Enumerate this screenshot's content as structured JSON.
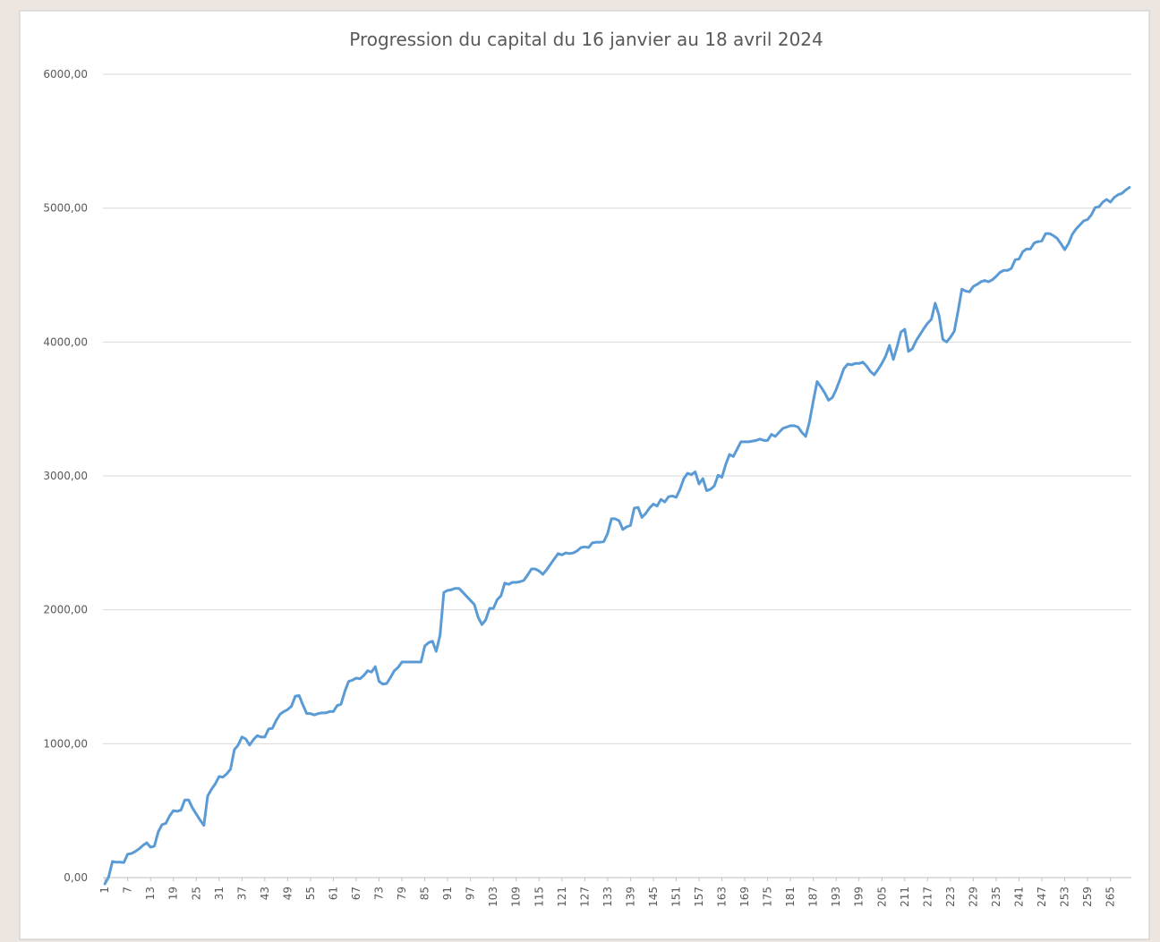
{
  "chart_data": {
    "type": "line",
    "title": "Progression du capital du 16 janvier au 18 avril 2024",
    "x": [
      1,
      2,
      3,
      4,
      5,
      6,
      7,
      8,
      9,
      10,
      11,
      12,
      13,
      14,
      15,
      16,
      17,
      18,
      19,
      20,
      21,
      22,
      23,
      24,
      25,
      26,
      27,
      28,
      29,
      30,
      31,
      32,
      33,
      34,
      35,
      36,
      37,
      38,
      39,
      40,
      41,
      42,
      43,
      44,
      45,
      46,
      47,
      48,
      49,
      50,
      51,
      52,
      53,
      54,
      55,
      56,
      57,
      58,
      59,
      60,
      61,
      62,
      63,
      64,
      65,
      66,
      67,
      68,
      69,
      70,
      71,
      72,
      73,
      74,
      75,
      76,
      77,
      78,
      79,
      80,
      81,
      82,
      83,
      84,
      85,
      86,
      87,
      88,
      89,
      90,
      91,
      92,
      93,
      94,
      95,
      96,
      97,
      98,
      99,
      100,
      101,
      102,
      103,
      104,
      105,
      106,
      107,
      108,
      109,
      110,
      111,
      112,
      113,
      114,
      115,
      116,
      117,
      118,
      119,
      120,
      121,
      122,
      123,
      124,
      125,
      126,
      127,
      128,
      129,
      130,
      131,
      132,
      133,
      134,
      135,
      136,
      137,
      138,
      139,
      140,
      141,
      142,
      143,
      144,
      145,
      146,
      147,
      148,
      149,
      150,
      151,
      152,
      153,
      154,
      155,
      156,
      157,
      158,
      159,
      160,
      161,
      162,
      163,
      164,
      165,
      166,
      167,
      168,
      169,
      170,
      171,
      172,
      173,
      174,
      175,
      176,
      177,
      178,
      179,
      180,
      181,
      182,
      183,
      184,
      185,
      186,
      187,
      188,
      189,
      190,
      191,
      192,
      193,
      194,
      195,
      196,
      197,
      198,
      199,
      200,
      201,
      202,
      203,
      204,
      205,
      206,
      207,
      208,
      209,
      210,
      211,
      212,
      213,
      214,
      215,
      216,
      217,
      218,
      219,
      220,
      221,
      222,
      223,
      224,
      225,
      226,
      227,
      228,
      229,
      230,
      231,
      232,
      233,
      234,
      235,
      236,
      237,
      238,
      239,
      240,
      241,
      242,
      243,
      244,
      245,
      246,
      247,
      248,
      249,
      250,
      251,
      252,
      253,
      254,
      255,
      256,
      257,
      258,
      259,
      260,
      261,
      262,
      263,
      264,
      265,
      266,
      267,
      268,
      269,
      270
    ],
    "series": [
      {
        "name": "Capital",
        "color": "#5b9bd5",
        "values": [
          -47,
          5,
          120,
          115,
          115,
          113,
          175,
          180,
          195,
          215,
          240,
          260,
          227,
          235,
          340,
          395,
          405,
          460,
          500,
          495,
          505,
          580,
          580,
          520,
          475,
          430,
          390,
          610,
          660,
          700,
          755,
          750,
          775,
          810,
          955,
          990,
          1050,
          1035,
          990,
          1030,
          1060,
          1050,
          1050,
          1110,
          1115,
          1175,
          1220,
          1240,
          1255,
          1280,
          1355,
          1360,
          1290,
          1225,
          1225,
          1215,
          1225,
          1230,
          1230,
          1240,
          1240,
          1285,
          1295,
          1390,
          1465,
          1475,
          1490,
          1485,
          1510,
          1545,
          1535,
          1575,
          1465,
          1445,
          1450,
          1495,
          1545,
          1570,
          1610,
          1610,
          1610,
          1610,
          1610,
          1610,
          1730,
          1755,
          1765,
          1690,
          1810,
          2130,
          2145,
          2150,
          2160,
          2160,
          2130,
          2100,
          2070,
          2040,
          1945,
          1890,
          1925,
          2010,
          2010,
          2075,
          2105,
          2200,
          2190,
          2205,
          2205,
          2210,
          2220,
          2260,
          2305,
          2305,
          2290,
          2265,
          2300,
          2340,
          2380,
          2420,
          2410,
          2425,
          2420,
          2425,
          2440,
          2465,
          2470,
          2465,
          2500,
          2505,
          2505,
          2510,
          2570,
          2680,
          2680,
          2665,
          2600,
          2620,
          2630,
          2760,
          2765,
          2690,
          2720,
          2760,
          2790,
          2775,
          2825,
          2805,
          2845,
          2850,
          2840,
          2900,
          2980,
          3020,
          3010,
          3030,
          2940,
          2980,
          2890,
          2900,
          2925,
          3005,
          2990,
          3085,
          3160,
          3145,
          3200,
          3255,
          3255,
          3255,
          3260,
          3265,
          3275,
          3265,
          3265,
          3310,
          3295,
          3325,
          3355,
          3365,
          3375,
          3375,
          3365,
          3325,
          3295,
          3405,
          3560,
          3705,
          3665,
          3620,
          3565,
          3585,
          3645,
          3720,
          3800,
          3835,
          3830,
          3840,
          3840,
          3850,
          3820,
          3780,
          3755,
          3795,
          3840,
          3895,
          3975,
          3870,
          3965,
          4075,
          4095,
          3930,
          3950,
          4010,
          4055,
          4100,
          4140,
          4170,
          4290,
          4200,
          4020,
          4000,
          4035,
          4080,
          4230,
          4395,
          4380,
          4375,
          4415,
          4430,
          4450,
          4460,
          4450,
          4465,
          4490,
          4520,
          4535,
          4535,
          4550,
          4615,
          4620,
          4675,
          4695,
          4695,
          4740,
          4750,
          4755,
          4810,
          4810,
          4795,
          4775,
          4735,
          4690,
          4735,
          4805,
          4845,
          4875,
          4905,
          4915,
          4950,
          5005,
          5010,
          5045,
          5065,
          5045,
          5080,
          5100,
          5110,
          5135,
          5155
        ]
      }
    ],
    "xlim": [
      0.5,
      270.5
    ],
    "xticks": [
      1,
      7,
      13,
      19,
      25,
      31,
      37,
      43,
      49,
      55,
      61,
      67,
      73,
      79,
      85,
      91,
      97,
      103,
      109,
      115,
      121,
      127,
      133,
      139,
      145,
      151,
      157,
      163,
      169,
      175,
      181,
      187,
      193,
      199,
      205,
      211,
      217,
      223,
      229,
      235,
      241,
      247,
      253,
      259,
      265
    ],
    "ylim": [
      0,
      6000
    ],
    "yticks": [
      {
        "value": 0,
        "label": "0,00"
      },
      {
        "value": 1000,
        "label": "1000,00"
      },
      {
        "value": 2000,
        "label": "2000,00"
      },
      {
        "value": 3000,
        "label": "3000,00"
      },
      {
        "value": 4000,
        "label": "4000,00"
      },
      {
        "value": 5000,
        "label": "5000,00"
      },
      {
        "value": 6000,
        "label": "6000,00"
      }
    ],
    "grid": true
  }
}
